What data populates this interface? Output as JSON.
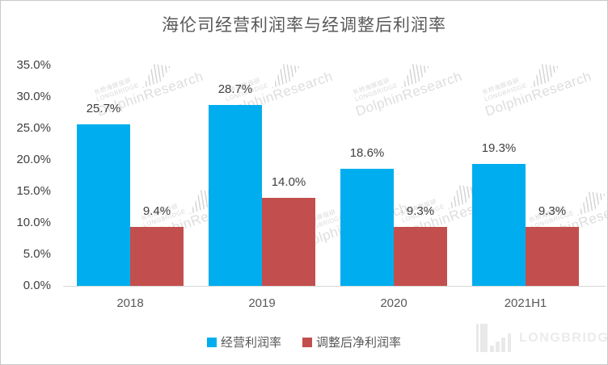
{
  "chart_data": {
    "type": "bar",
    "title": "海伦司经营利润率与经调整后利润率",
    "categories": [
      "2018",
      "2019",
      "2020",
      "2021H1"
    ],
    "series": [
      {
        "name": "经营利润率",
        "color": "#00AEEF",
        "values": [
          25.7,
          28.7,
          18.6,
          19.3
        ],
        "labels": [
          "25.7%",
          "28.7%",
          "18.6%",
          "19.3%"
        ]
      },
      {
        "name": "调整后净利润率",
        "color": "#C24F4D",
        "values": [
          9.4,
          14.0,
          9.3,
          9.3
        ],
        "labels": [
          "9.4%",
          "14.0%",
          "9.3%",
          "9.3%"
        ]
      }
    ],
    "xlabel": "",
    "ylabel": "",
    "ylim": [
      0,
      35
    ],
    "ytick_step": 5,
    "ytick_labels": [
      "0.0%",
      "5.0%",
      "10.0%",
      "15.0%",
      "20.0%",
      "25.0%",
      "30.0%",
      "35.0%"
    ],
    "grid": false,
    "legend_position": "bottom"
  },
  "watermark": {
    "cn": "长桥海豚投研",
    "en": "LONGBRIDGE",
    "main": "DolphinResearch"
  },
  "logo": {
    "text": "LONGBRIDGE"
  },
  "colors": {
    "series1": "#00AEEF",
    "series2": "#C24F4D",
    "axis_line": "#D6D6D6",
    "tick_text": "#3F3F3F",
    "category_text": "#595959",
    "title_text": "#595959",
    "border": "#C9C9C9",
    "logo_text": "#EBEBEB"
  }
}
